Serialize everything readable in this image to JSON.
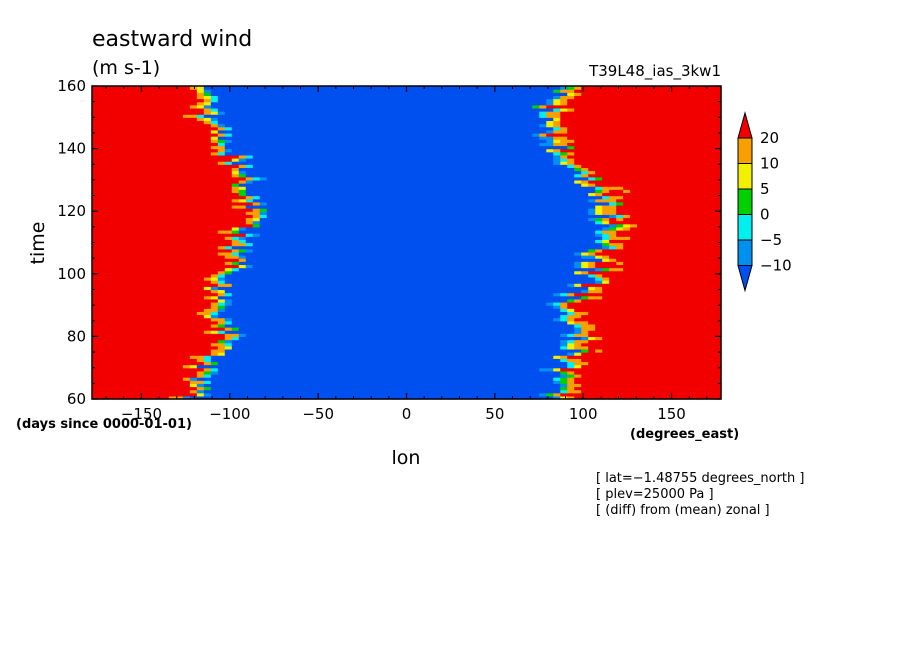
{
  "chart_data": {
    "type": "heatmap",
    "title": "eastward wind",
    "units": "(m s-1)",
    "run_label": "T39L48_ias_3kw1",
    "xlabel": "lon",
    "ylabel": "time",
    "x_unit_note": "(degrees_east)",
    "y_unit_note": "(days since 0000-01-01)",
    "xlim": [
      -178,
      178
    ],
    "ylim": [
      60,
      160
    ],
    "x_ticks": [
      -150,
      -100,
      -50,
      0,
      50,
      100,
      150
    ],
    "x_tick_labels": [
      "−150",
      "−100",
      "−50",
      "0",
      "50",
      "100",
      "150"
    ],
    "y_ticks": [
      60,
      80,
      100,
      120,
      140,
      160
    ],
    "y_tick_labels": [
      "60",
      "80",
      "100",
      "120",
      "140",
      "160"
    ],
    "colorbar": {
      "levels": [
        20,
        10,
        5,
        0,
        -5,
        -10
      ],
      "level_labels": [
        "20",
        "10",
        "5",
        "0",
        "−5",
        "−10"
      ],
      "colors": [
        "#f20000",
        "#f7a000",
        "#f0f000",
        "#00d000",
        "#00f0f0",
        "#0090f0",
        "#0050f0"
      ]
    },
    "field_description": "Time-longitude section of zonal-wind anomaly; westerly (positive) west of ~-110 and east of ~110 deg, easterly (negative) between.",
    "profile": {
      "times": [
        60,
        70,
        80,
        90,
        100,
        110,
        120,
        130,
        140,
        150,
        160
      ],
      "west_boundary_lon": [
        -120,
        -115,
        -100,
        -110,
        -100,
        -95,
        -85,
        -90,
        -100,
        -115,
        -110
      ],
      "east_boundary_lon": [
        80,
        90,
        100,
        95,
        105,
        110,
        115,
        105,
        85,
        80,
        85
      ]
    },
    "annotations": [
      "[ lat=−1.48755 degrees_north ]",
      "[ plev=25000 Pa ]",
      "[ (diff) from (mean) zonal ]"
    ]
  }
}
